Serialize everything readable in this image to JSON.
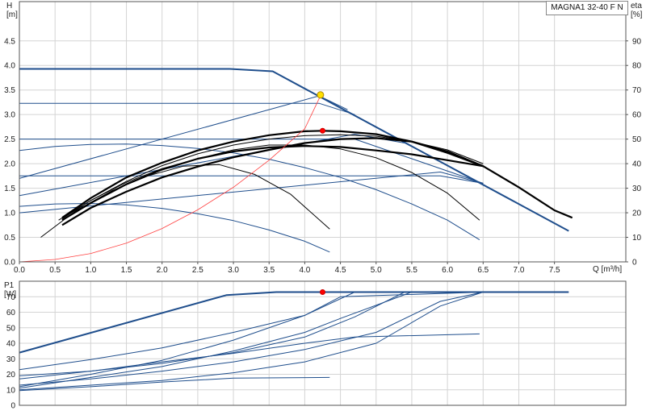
{
  "chart_title": "MAGNA1 32-40 F N",
  "colors": {
    "flow_curve": "#1f4e8c",
    "bold_curve": "#000000",
    "thin_curve": "#000000",
    "system_curve": "#ff4040",
    "grid": "#d4d4d4",
    "axis": "#555555",
    "bg": "#ffffff",
    "duty_point": "#ffe000",
    "max_eff_point": "#ff0000"
  },
  "chart_data": [
    {
      "type": "line",
      "panel": "head",
      "ylabel": "H\n[m]",
      "y2label": "eta\n[%]",
      "xlabel": "Q [m³/h]",
      "xlim": [
        0,
        8.5
      ],
      "ylim": [
        0,
        5.3
      ],
      "y2lim": [
        0,
        106
      ],
      "x_ticks": [
        0.0,
        0.5,
        1.0,
        1.5,
        2.0,
        2.5,
        3.0,
        3.5,
        4.0,
        4.5,
        5.0,
        5.5,
        6.0,
        6.5,
        7.0,
        7.5
      ],
      "y_ticks": [
        0.0,
        0.5,
        1.0,
        1.5,
        2.0,
        2.5,
        3.0,
        3.5,
        4.0,
        4.5
      ],
      "y2_ticks": [
        0,
        10,
        20,
        30,
        40,
        50,
        60,
        70,
        80,
        90
      ],
      "grid": true,
      "series": [
        {
          "style": "flow_bold",
          "x": [
            0,
            2.95,
            3.55,
            7.7
          ],
          "y": [
            3.93,
            3.93,
            3.88,
            0.63
          ]
        },
        {
          "style": "flow",
          "x": [
            0,
            4.2,
            4.7
          ],
          "y": [
            3.23,
            3.23,
            3.0
          ]
        },
        {
          "style": "flow",
          "x": [
            0,
            4.7,
            6.5
          ],
          "y": [
            2.5,
            2.5,
            1.6
          ]
        },
        {
          "style": "flow",
          "x": [
            0,
            5.9,
            6.5
          ],
          "y": [
            1.75,
            1.75,
            1.6
          ]
        },
        {
          "style": "flow",
          "x": [
            0,
            4.2,
            4.6
          ],
          "y": [
            1.7,
            3.38,
            3.1
          ]
        },
        {
          "style": "flow",
          "x": [
            0,
            4.7,
            5.4
          ],
          "y": [
            1.35,
            2.6,
            2.42
          ]
        },
        {
          "style": "flow",
          "x": [
            0,
            5.9,
            6.5
          ],
          "y": [
            1.0,
            1.83,
            1.6
          ]
        },
        {
          "style": "flow",
          "x": [
            0,
            0.5,
            1.0,
            1.5,
            2.0,
            2.5,
            3.0,
            3.5,
            4.0,
            4.5,
            5.0,
            5.5,
            6.0,
            6.45
          ],
          "y": [
            2.27,
            2.35,
            2.39,
            2.4,
            2.37,
            2.31,
            2.22,
            2.09,
            1.92,
            1.72,
            1.47,
            1.18,
            0.85,
            0.45
          ]
        },
        {
          "style": "flow",
          "x": [
            0,
            0.5,
            1.0,
            1.5,
            2.0,
            2.5,
            3.0,
            3.5,
            4.0,
            4.35
          ],
          "y": [
            1.13,
            1.18,
            1.19,
            1.16,
            1.09,
            0.98,
            0.84,
            0.65,
            0.42,
            0.2
          ]
        },
        {
          "style": "bold",
          "x": [
            0.6,
            1.0,
            1.5,
            2.0,
            2.5,
            3.0,
            3.5,
            4.0,
            4.5,
            5.0,
            5.5,
            6.0,
            6.5,
            7.0,
            7.5,
            7.75
          ],
          "y": [
            0.75,
            1.1,
            1.43,
            1.72,
            1.94,
            2.13,
            2.28,
            2.42,
            2.5,
            2.52,
            2.45,
            2.25,
            1.95,
            1.52,
            1.05,
            0.9
          ]
        },
        {
          "style": "bold",
          "x": [
            0.6,
            1.0,
            1.5,
            2.0,
            2.5,
            3.0,
            3.5,
            4.0,
            4.25,
            4.5,
            5.0,
            5.5,
            6.0,
            6.5
          ],
          "y": [
            0.9,
            1.3,
            1.72,
            2.02,
            2.27,
            2.45,
            2.58,
            2.66,
            2.67,
            2.66,
            2.6,
            2.45,
            2.22,
            1.95
          ]
        },
        {
          "style": "bold",
          "x": [
            0.6,
            1.0,
            1.5,
            2.0,
            2.5,
            3.0,
            3.5,
            4.0,
            4.5,
            5.0,
            5.5,
            6.0,
            6.5
          ],
          "y": [
            0.85,
            1.2,
            1.58,
            1.88,
            2.1,
            2.25,
            2.33,
            2.36,
            2.34,
            2.27,
            2.19,
            2.07,
            1.95
          ]
        },
        {
          "style": "thin",
          "x": [
            0.3,
            0.8,
            1.3,
            1.8,
            2.3,
            2.8,
            3.3,
            3.8,
            4.35
          ],
          "y": [
            0.5,
            1.05,
            1.45,
            1.75,
            1.95,
            1.98,
            1.78,
            1.38,
            0.67
          ]
        },
        {
          "style": "thin",
          "x": [
            0.55,
            1.0,
            1.5,
            2.0,
            2.5,
            3.0,
            3.5,
            4.0,
            4.5,
            5.0,
            5.5,
            6.0,
            6.45
          ],
          "y": [
            0.85,
            1.25,
            1.62,
            1.9,
            2.1,
            2.28,
            2.38,
            2.38,
            2.3,
            2.12,
            1.82,
            1.4,
            0.85
          ]
        },
        {
          "style": "thin",
          "x": [
            0.6,
            1.0,
            1.5,
            2.0,
            2.5,
            3.0,
            3.5,
            4.0,
            4.5,
            5.0,
            5.5,
            6.0,
            6.5
          ],
          "y": [
            0.88,
            1.25,
            1.64,
            1.96,
            2.2,
            2.38,
            2.5,
            2.57,
            2.59,
            2.56,
            2.45,
            2.28,
            2.0
          ]
        },
        {
          "style": "system",
          "x": [
            0,
            0.5,
            1.0,
            1.5,
            2.0,
            2.5,
            3.0,
            3.5,
            4.0,
            4.22
          ],
          "y": [
            0.0,
            0.05,
            0.17,
            0.38,
            0.68,
            1.06,
            1.52,
            2.07,
            2.71,
            3.38
          ]
        }
      ],
      "points": [
        {
          "style": "duty_point",
          "x": 4.22,
          "y": 3.4
        },
        {
          "style": "max_eff_point",
          "x": 4.25,
          "y": 2.67
        }
      ]
    },
    {
      "type": "line",
      "panel": "power",
      "ylabel": "P1\n[W]",
      "xlim": [
        0,
        8.5
      ],
      "ylim": [
        0,
        80
      ],
      "y_ticks": [
        0,
        10,
        20,
        30,
        40,
        50,
        60,
        70
      ],
      "grid": true,
      "series": [
        {
          "style": "flow_bold",
          "x": [
            0,
            2.9,
            3.6,
            7.7
          ],
          "y": [
            34,
            71,
            73,
            73
          ]
        },
        {
          "style": "flow",
          "x": [
            0,
            1.0,
            2.0,
            3.0,
            4.0,
            4.7,
            6.5
          ],
          "y": [
            23,
            29.5,
            37,
            47,
            58,
            73,
            73
          ]
        },
        {
          "style": "flow",
          "x": [
            0,
            1.0,
            2.0,
            3.0,
            4.0,
            4.7,
            5.4,
            6.5
          ],
          "y": [
            19,
            22,
            27,
            34,
            44,
            57,
            73,
            73
          ]
        },
        {
          "style": "flow",
          "x": [
            0,
            1.0,
            2.0,
            3.0,
            4.0,
            5.0,
            5.9,
            6.5
          ],
          "y": [
            13,
            17,
            22,
            28,
            36,
            47,
            67,
            73
          ]
        },
        {
          "style": "flow",
          "x": [
            0,
            1.0,
            2.0,
            3.0,
            4.0,
            5.0,
            5.9,
            6.5
          ],
          "y": [
            10,
            13,
            16,
            21,
            28,
            40,
            64,
            73
          ]
        },
        {
          "style": "flow",
          "x": [
            0,
            1.0,
            2.0,
            3.0,
            4.0,
            4.7,
            6.45
          ],
          "y": [
            17,
            22,
            28,
            33.5,
            40,
            44,
            46
          ]
        },
        {
          "style": "flow",
          "x": [
            0,
            1.0,
            2.0,
            3.0,
            4.35
          ],
          "y": [
            9.5,
            12,
            15,
            17.5,
            18
          ]
        },
        {
          "style": "flow",
          "x": [
            0,
            1.0,
            2.0,
            3.0,
            4.0,
            4.5,
            6.5
          ],
          "y": [
            12,
            20,
            29,
            42,
            58,
            70,
            73
          ]
        },
        {
          "style": "flow",
          "x": [
            0,
            1.0,
            2.0,
            3.0,
            4.0,
            4.5,
            5.5,
            6.5
          ],
          "y": [
            11,
            18,
            25,
            35,
            47,
            56,
            73,
            73
          ]
        }
      ],
      "points": [
        {
          "style": "max_eff_point",
          "x": 4.25,
          "y": 73
        }
      ]
    }
  ]
}
